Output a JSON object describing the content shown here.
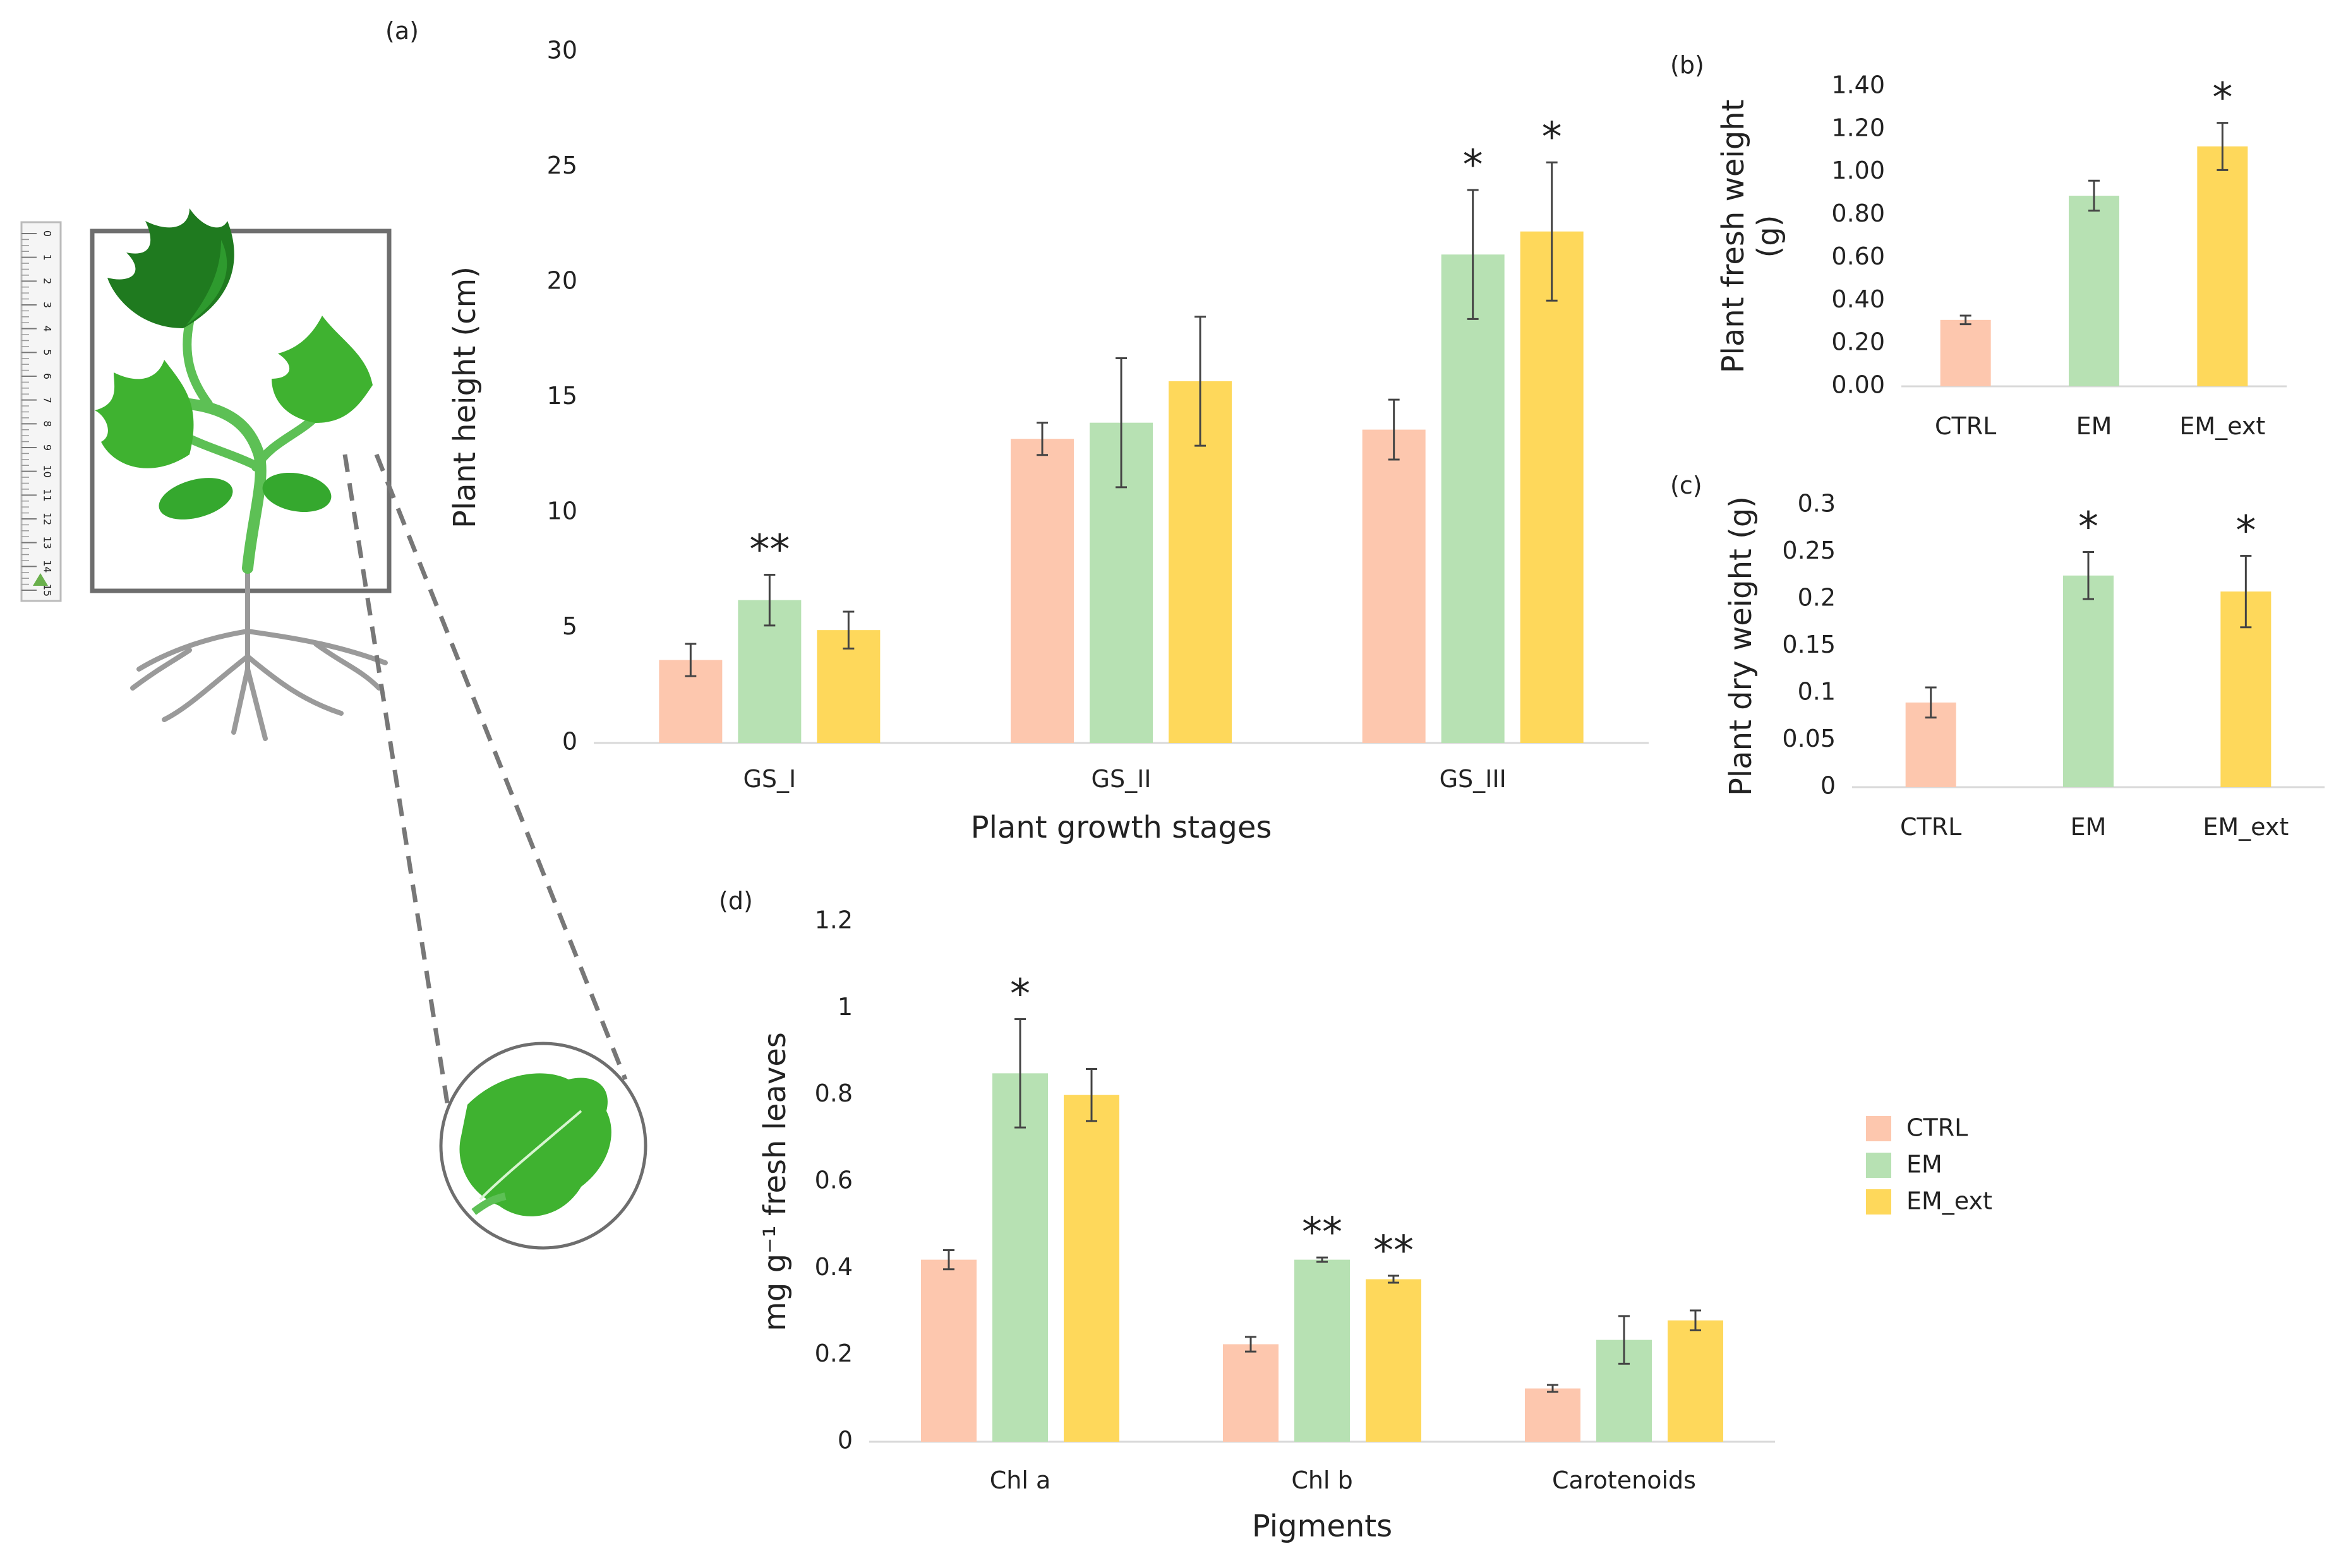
{
  "colors": {
    "CTRL": "#FDC7AE",
    "EM": "#B7E1B3",
    "EM_ext": "#FED85B",
    "axis": "#D9D9D9",
    "error": "#444444",
    "plant_green": "#3FB230",
    "plant_dark": "#1F7A1F",
    "root": "#9A9A9A"
  },
  "legend": [
    "CTRL",
    "EM",
    "EM_ext"
  ],
  "illustration": {
    "ruler_ticks": [
      "0",
      "1",
      "2",
      "3",
      "4",
      "5",
      "6",
      "7",
      "8",
      "9",
      "10",
      "11",
      "12",
      "13",
      "14",
      "15"
    ],
    "icons": [
      "ruler-icon",
      "plant-icon",
      "leaf-zoom-icon"
    ]
  },
  "chart_data": [
    {
      "panel": "(a)",
      "type": "bar",
      "categories": [
        "GS_I",
        "GS_II",
        "GS_III"
      ],
      "series": [
        {
          "name": "CTRL",
          "values": [
            3.6,
            13.2,
            13.6
          ],
          "errors": [
            0.7,
            0.7,
            1.3
          ]
        },
        {
          "name": "EM",
          "values": [
            6.2,
            13.9,
            21.2
          ],
          "errors": [
            1.1,
            2.8,
            2.8
          ]
        },
        {
          "name": "EM_ext",
          "values": [
            4.9,
            15.7,
            22.2
          ],
          "errors": [
            0.8,
            2.8,
            3.0
          ]
        }
      ],
      "annotations": [
        {
          "category": "GS_I",
          "series": "EM",
          "text": "**"
        },
        {
          "category": "GS_III",
          "series": "EM",
          "text": "*"
        },
        {
          "category": "GS_III",
          "series": "EM_ext",
          "text": "*"
        }
      ],
      "xlabel": "Plant growth stages",
      "ylabel": "Plant height (cm)",
      "ylim": [
        0,
        30
      ],
      "yticks": [
        "0",
        "5",
        "10",
        "15",
        "20",
        "25",
        "30"
      ]
    },
    {
      "panel": "(b)",
      "type": "bar",
      "categories": [
        "CTRL",
        "EM",
        "EM_ext"
      ],
      "series": [
        {
          "values": [
            0.31,
            0.89,
            1.12
          ],
          "errors": [
            0.02,
            0.07,
            0.11
          ]
        }
      ],
      "annotations": [
        {
          "category": "EM_ext",
          "text": "*"
        }
      ],
      "ylabel_lines": [
        "Plant fresh weight",
        "(g)"
      ],
      "ylim": [
        0,
        1.4
      ],
      "yticks": [
        "0.00",
        "0.20",
        "0.40",
        "0.60",
        "0.80",
        "1.00",
        "1.20",
        "1.40"
      ]
    },
    {
      "panel": "(c)",
      "type": "bar",
      "categories": [
        "CTRL",
        "EM",
        "EM_ext"
      ],
      "series": [
        {
          "values": [
            0.09,
            0.225,
            0.208
          ],
          "errors": [
            0.016,
            0.025,
            0.038
          ]
        }
      ],
      "annotations": [
        {
          "category": "EM",
          "text": "*"
        },
        {
          "category": "EM_ext",
          "text": "*"
        }
      ],
      "ylabel": "Plant dry weight (g)",
      "ylim": [
        0,
        0.3
      ],
      "yticks": [
        "0",
        "0.05",
        "0.1",
        "0.15",
        "0.2",
        "0.25",
        "0.3"
      ]
    },
    {
      "panel": "(d)",
      "type": "bar",
      "categories": [
        "Chl a",
        "Chl b",
        "Carotenoids"
      ],
      "series": [
        {
          "name": "CTRL",
          "values": [
            0.42,
            0.225,
            0.123
          ],
          "errors": [
            0.022,
            0.017,
            0.008
          ]
        },
        {
          "name": "EM",
          "values": [
            0.85,
            0.42,
            0.235
          ],
          "errors": [
            0.125,
            0.005,
            0.055
          ]
        },
        {
          "name": "EM_ext",
          "values": [
            0.8,
            0.375,
            0.28
          ],
          "errors": [
            0.06,
            0.008,
            0.023
          ]
        }
      ],
      "annotations": [
        {
          "category": "Chl a",
          "series": "EM",
          "text": "*"
        },
        {
          "category": "Chl b",
          "series": "EM",
          "text": "**"
        },
        {
          "category": "Chl b",
          "series": "EM_ext",
          "text": "**"
        }
      ],
      "xlabel": "Pigments",
      "ylabel": "mg g⁻¹ fresh leaves",
      "ylim": [
        0,
        1.2
      ],
      "yticks": [
        "0",
        "0.2",
        "0.4",
        "0.6",
        "0.8",
        "1",
        "1.2"
      ]
    }
  ]
}
